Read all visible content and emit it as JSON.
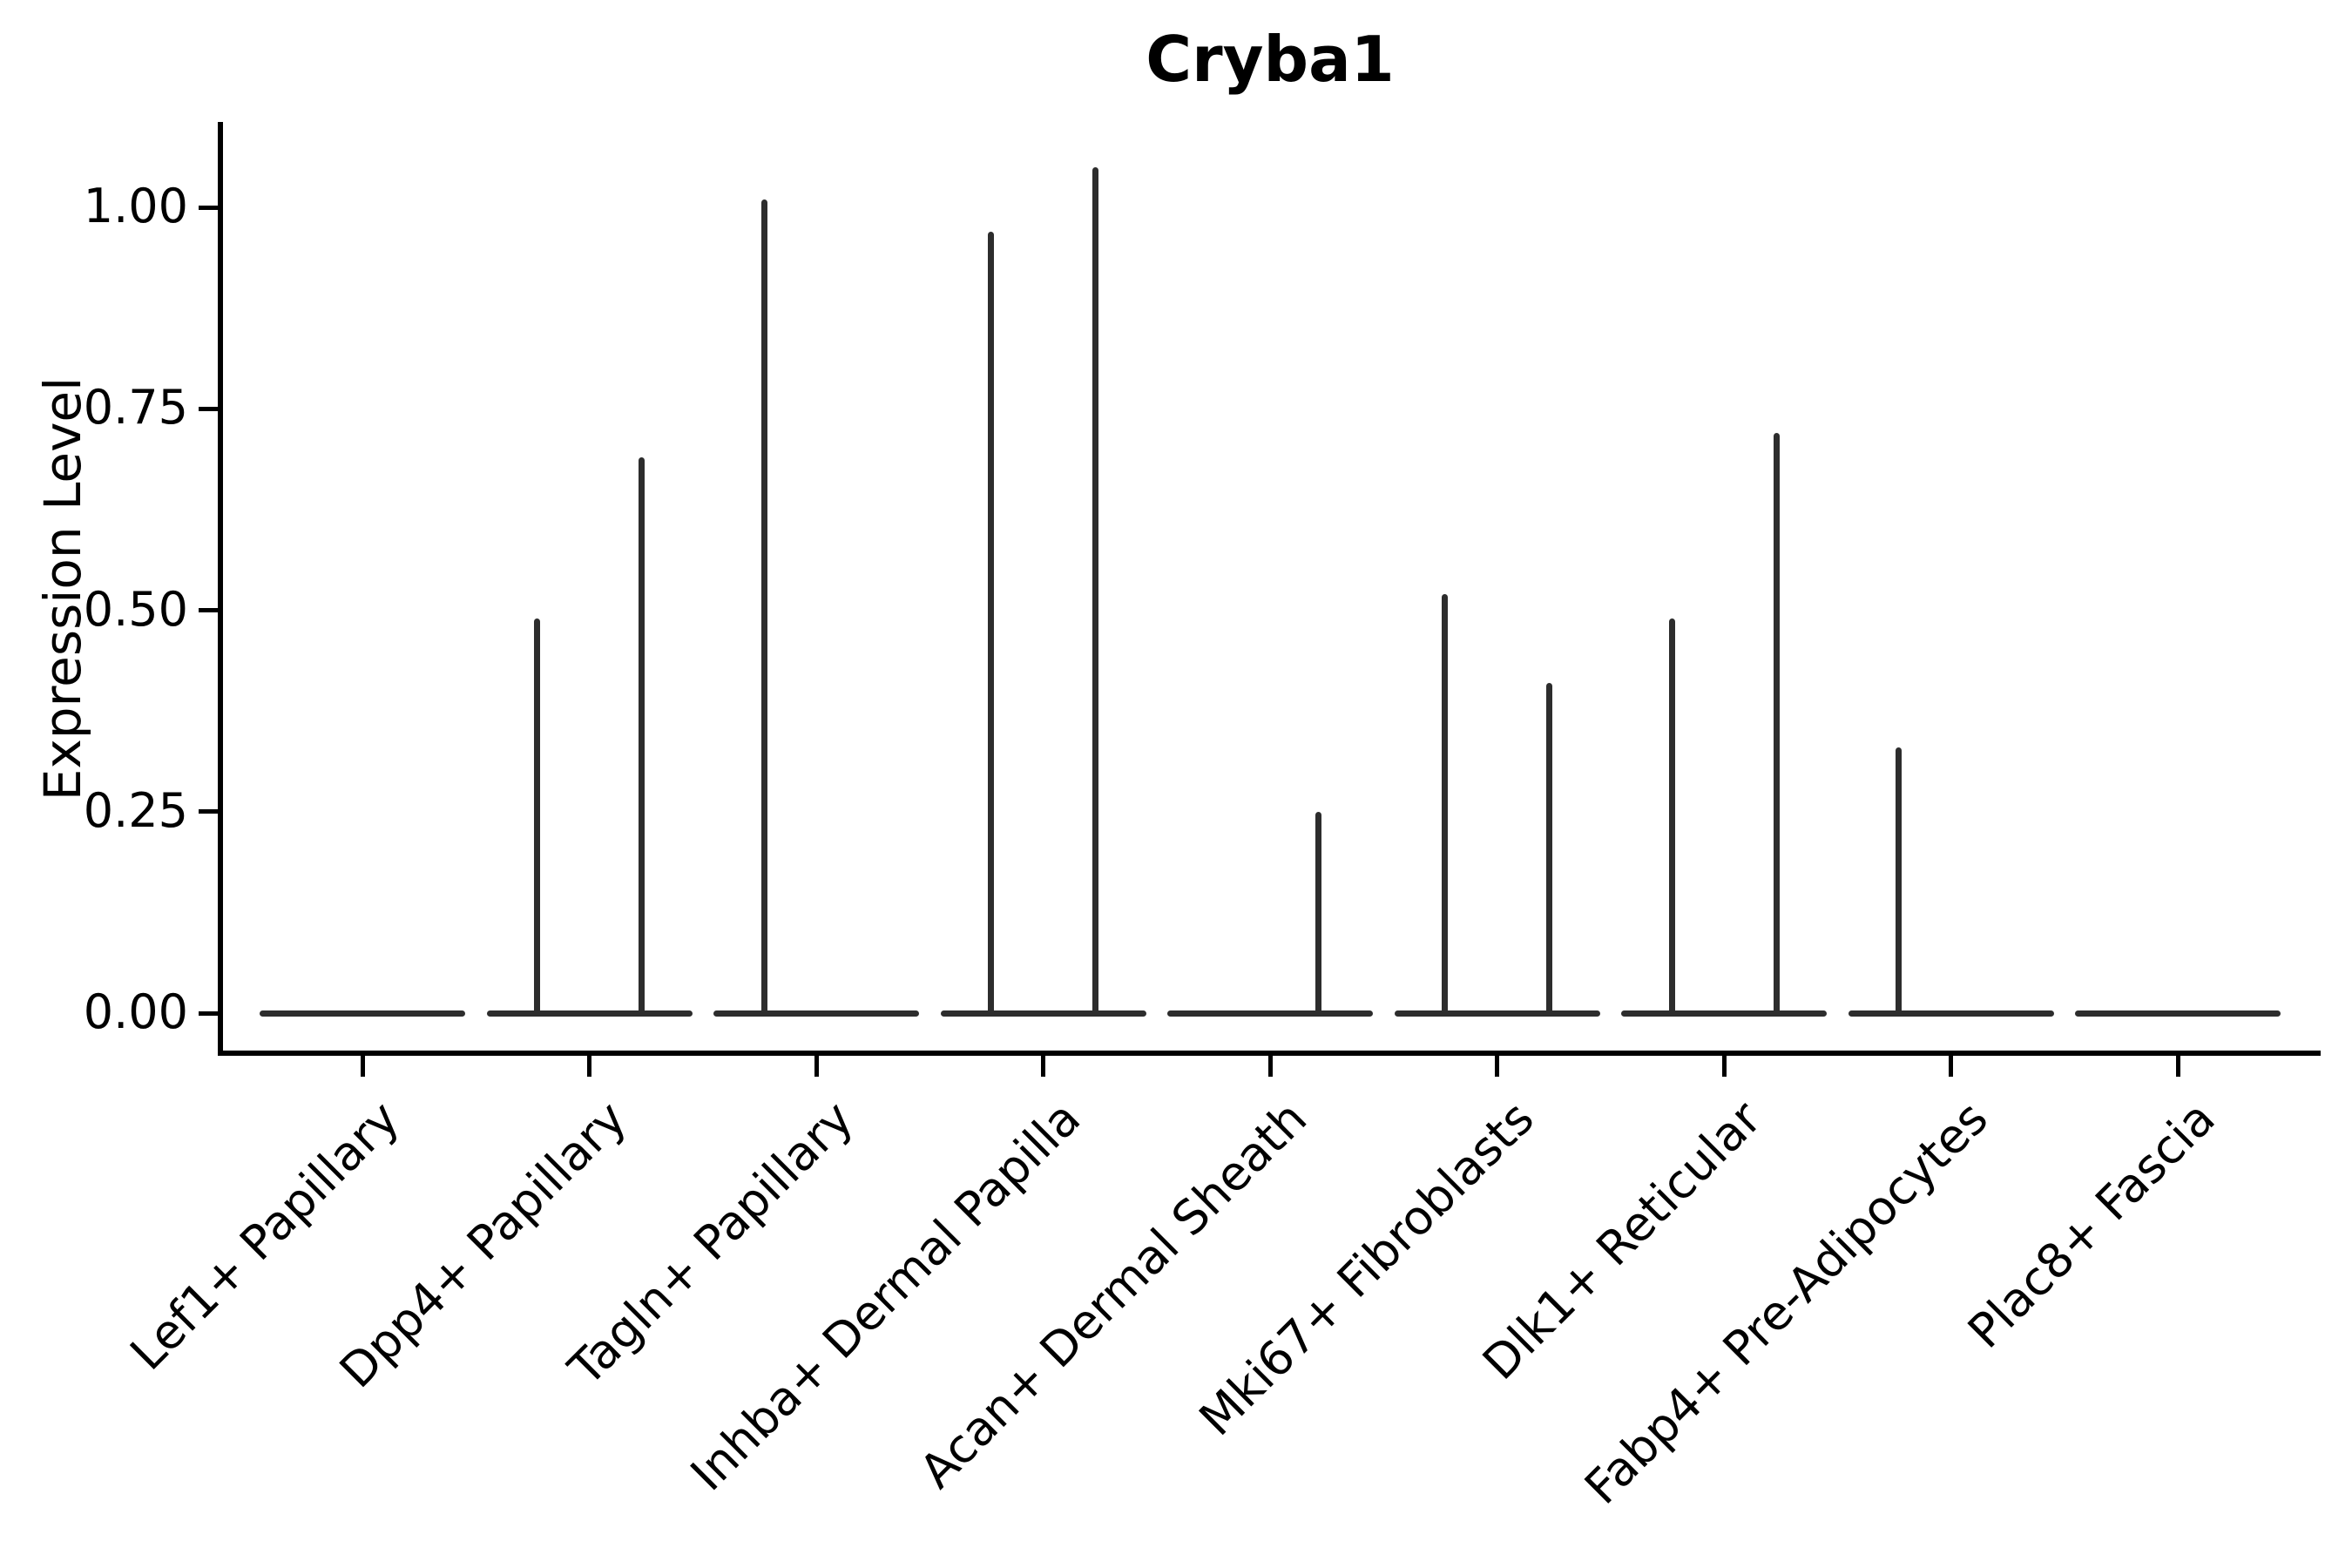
{
  "chart_data": {
    "type": "violin",
    "title": "Cryba1",
    "ylabel": "Expression Level",
    "xlabel": "",
    "ylim": [
      0,
      1.1
    ],
    "grid": false,
    "legend_position": "none",
    "violin_color": "#2d2d2d",
    "axis_color": "#000000",
    "yticks": [
      {
        "value": 0.0,
        "label": "0.00"
      },
      {
        "value": 0.25,
        "label": "0.25"
      },
      {
        "value": 0.5,
        "label": "0.50"
      },
      {
        "value": 0.75,
        "label": "0.75"
      },
      {
        "value": 1.0,
        "label": "1.00"
      }
    ],
    "categories": [
      {
        "label": "Lef1+ Papillary",
        "spikes": []
      },
      {
        "label": "Dpp4+ Papillary",
        "spikes": [
          {
            "value": 0.49,
            "dx": -60
          },
          {
            "value": 0.69,
            "dx": 60
          }
        ]
      },
      {
        "label": "Tagln+ Papillary",
        "spikes": [
          {
            "value": 1.01,
            "dx": -60
          }
        ]
      },
      {
        "label": "Inhba+ Dermal Papilla",
        "spikes": [
          {
            "value": 0.97,
            "dx": -60
          },
          {
            "value": 1.05,
            "dx": 60
          }
        ]
      },
      {
        "label": "Acan+ Dermal Sheath",
        "spikes": [
          {
            "value": 0.25,
            "dx": 55
          }
        ]
      },
      {
        "label": "Mki67+ Fibroblasts",
        "spikes": [
          {
            "value": 0.52,
            "dx": -60
          },
          {
            "value": 0.41,
            "dx": 60
          }
        ]
      },
      {
        "label": "Dlk1+ Reticular",
        "spikes": [
          {
            "value": 0.49,
            "dx": -60
          },
          {
            "value": 0.72,
            "dx": 60
          }
        ]
      },
      {
        "label": "Fabp4+ Pre-Adipocytes",
        "spikes": [
          {
            "value": 0.33,
            "dx": -60
          }
        ]
      },
      {
        "label": "Plac8+ Fascia",
        "spikes": []
      }
    ]
  }
}
